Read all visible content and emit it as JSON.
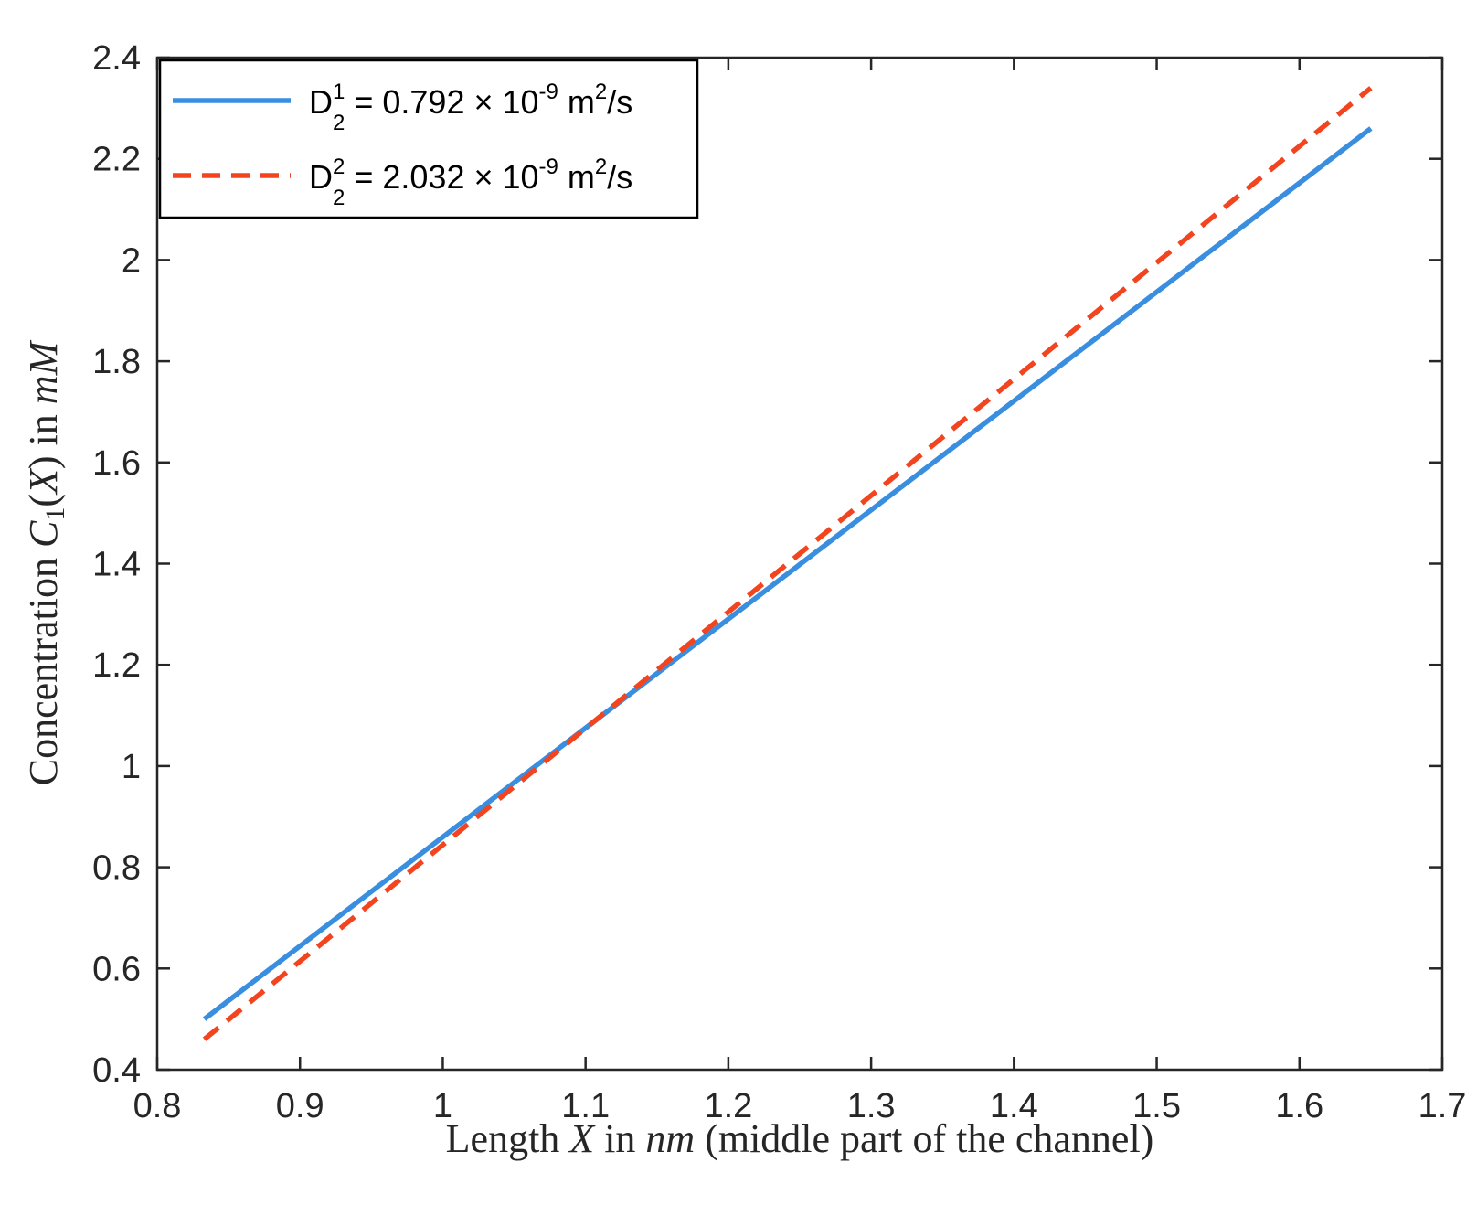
{
  "chart_data": {
    "type": "line",
    "title": "",
    "xlabel": "Length X in nm (middle part of the channel)",
    "ylabel": "Concentration C1(X) in mM",
    "xlim": [
      0.8,
      1.7
    ],
    "ylim": [
      0.4,
      2.4
    ],
    "xticks": [
      "0.8",
      "0.9",
      "1",
      "1.1",
      "1.2",
      "1.3",
      "1.4",
      "1.5",
      "1.6",
      "1.7"
    ],
    "yticks": [
      "0.4",
      "0.6",
      "0.8",
      "1",
      "1.2",
      "1.4",
      "1.6",
      "1.8",
      "2",
      "2.2",
      "2.4"
    ],
    "grid": false,
    "legend_position": "top-left",
    "series": [
      {
        "name": "D_2^1 = 0.792 × 10^-9 m^2/s",
        "legend": {
          "base": "D",
          "sup": "1",
          "sub": "2",
          "value": " = 0.792 × 10",
          "exp": "-9",
          "unit": " m",
          "unit_exp": "2",
          "unit_tail": "/s"
        },
        "style": "solid",
        "color": "#3A8EE0",
        "x": [
          0.833,
          1.65
        ],
        "y": [
          0.5,
          2.26
        ]
      },
      {
        "name": "D_2^2 = 2.032 × 10^-9 m^2/s",
        "legend": {
          "base": "D",
          "sup": "2",
          "sub": "2",
          "value": " = 2.032  × 10",
          "exp": "-9",
          "unit": " m",
          "unit_exp": "2",
          "unit_tail": "/s"
        },
        "style": "dashed",
        "color": "#F2451F",
        "x": [
          0.833,
          1.65
        ],
        "y": [
          0.46,
          2.34
        ]
      }
    ]
  }
}
